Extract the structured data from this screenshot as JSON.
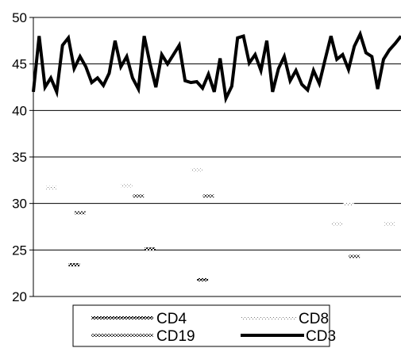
{
  "chart_data": {
    "type": "line",
    "title": "",
    "xlabel": "",
    "ylabel": "",
    "ylim": [
      20,
      50
    ],
    "yticks": [
      20,
      25,
      30,
      35,
      40,
      45,
      50
    ],
    "grid": true,
    "legend_position": "bottom",
    "x": [
      1,
      2,
      3,
      4,
      5,
      6,
      7,
      8,
      9,
      10,
      11,
      12,
      13,
      14,
      15,
      16,
      17,
      18,
      19,
      20,
      21,
      22,
      23,
      24,
      25,
      26,
      27,
      28,
      29,
      30,
      31,
      32,
      33,
      34,
      35,
      36,
      37,
      38,
      39,
      40,
      41,
      42,
      43,
      44,
      45,
      46,
      47,
      48,
      49,
      50,
      51,
      52,
      53,
      54,
      55,
      56,
      57,
      58,
      59,
      60,
      61,
      62,
      63,
      64
    ],
    "series": [
      {
        "name": "CD3",
        "style": "solid-thick",
        "color": "#000000",
        "values": [
          42.0,
          48.0,
          42.5,
          43.5,
          42.0,
          47.0,
          47.8,
          44.5,
          45.8,
          44.7,
          43.0,
          43.5,
          42.7,
          44.0,
          47.5,
          44.7,
          45.8,
          43.5,
          42.3,
          48.0,
          45.0,
          42.5,
          46.0,
          45.0,
          46.0,
          47.0,
          43.2,
          43.0,
          43.1,
          42.4,
          43.9,
          42.0,
          45.6,
          41.3,
          42.6,
          47.8,
          48.0,
          45.1,
          46.0,
          44.3,
          47.5,
          42.0,
          44.5,
          45.8,
          43.2,
          44.3,
          42.8,
          42.2,
          44.3,
          42.9,
          45.5,
          48.0,
          45.5,
          46.0,
          44.4,
          46.9,
          48.2,
          46.2,
          45.8,
          42.3,
          45.5,
          46.5,
          47.2,
          48.0
        ]
      },
      {
        "name": "CD4",
        "style": "dense-dash",
        "color": "#222222",
        "points": [
          [
            8,
            23.4
          ],
          [
            21,
            25.1
          ],
          [
            30,
            21.8
          ]
        ]
      },
      {
        "name": "CD8",
        "style": "light-dash",
        "color": "#888888",
        "points": [
          [
            4,
            31.7
          ],
          [
            17,
            31.9
          ],
          [
            29,
            33.6
          ],
          [
            53,
            27.8
          ],
          [
            55,
            29.9
          ],
          [
            62,
            27.8
          ]
        ]
      },
      {
        "name": "CD19",
        "style": "medium-dash",
        "color": "#555555",
        "points": [
          [
            9,
            29.0
          ],
          [
            19,
            30.8
          ],
          [
            31,
            30.8
          ],
          [
            56,
            24.3
          ]
        ]
      }
    ],
    "legend": [
      {
        "name": "CD4",
        "style": "dense-dash"
      },
      {
        "name": "CD8",
        "style": "light-dash"
      },
      {
        "name": "CD19",
        "style": "medium-dash"
      },
      {
        "name": "CD3",
        "style": "solid-thick"
      }
    ]
  }
}
